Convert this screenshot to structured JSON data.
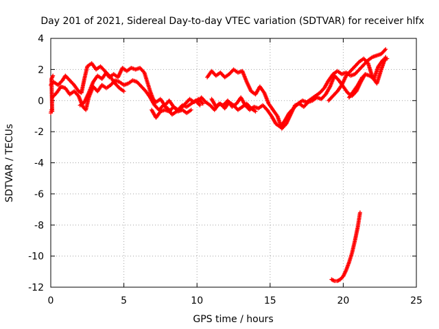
{
  "chart_data": {
    "type": "scatter",
    "title": "Day 201 of 2021, Sidereal Day-to-day VTEC variation (SDTVAR) for receiver hlfx",
    "xlabel": "GPS time / hours",
    "ylabel": "SDTVAR / TECUs",
    "xlim": [
      0,
      25
    ],
    "ylim": [
      -12,
      4
    ],
    "xticks": [
      0,
      5,
      10,
      15,
      20,
      25
    ],
    "yticks": [
      -12,
      -10,
      -8,
      -6,
      -4,
      -2,
      0,
      2,
      4
    ],
    "grid": true,
    "marker": "+",
    "color": "#ff0000",
    "series": [
      {
        "name": "track-a",
        "points": [
          [
            0.0,
            1.0
          ],
          [
            0.2,
            1.2
          ],
          [
            0.5,
            1.0
          ],
          [
            0.8,
            1.3
          ],
          [
            1.0,
            1.6
          ],
          [
            1.3,
            1.3
          ],
          [
            1.6,
            1.0
          ],
          [
            1.9,
            0.6
          ],
          [
            2.1,
            0.5
          ],
          [
            2.3,
            1.4
          ],
          [
            2.5,
            2.2
          ],
          [
            2.8,
            2.4
          ],
          [
            3.1,
            2.0
          ],
          [
            3.4,
            2.2
          ],
          [
            3.7,
            1.9
          ],
          [
            4.0,
            1.5
          ],
          [
            4.3,
            1.7
          ],
          [
            4.6,
            1.5
          ],
          [
            4.9,
            2.1
          ],
          [
            5.2,
            1.9
          ],
          [
            5.5,
            2.1
          ],
          [
            5.8,
            2.0
          ],
          [
            6.1,
            2.1
          ],
          [
            6.4,
            1.8
          ],
          [
            6.6,
            1.2
          ],
          [
            6.8,
            0.6
          ],
          [
            7.0,
            0.1
          ],
          [
            7.2,
            -0.1
          ],
          [
            7.5,
            0.1
          ],
          [
            7.8,
            -0.3
          ],
          [
            8.1,
            0.0
          ],
          [
            8.4,
            -0.4
          ],
          [
            8.7,
            -0.6
          ],
          [
            9.0,
            -0.3
          ],
          [
            9.3,
            -0.4
          ],
          [
            9.6,
            -0.2
          ],
          [
            9.9,
            0.0
          ],
          [
            10.2,
            -0.3
          ]
        ]
      },
      {
        "name": "track-b",
        "points": [
          [
            0.1,
            0.2
          ],
          [
            0.4,
            0.5
          ],
          [
            0.7,
            0.9
          ],
          [
            1.0,
            0.8
          ],
          [
            1.3,
            0.4
          ],
          [
            1.6,
            0.6
          ],
          [
            1.9,
            0.3
          ],
          [
            2.2,
            -0.4
          ],
          [
            2.4,
            -0.6
          ],
          [
            2.6,
            0.2
          ],
          [
            2.9,
            0.9
          ],
          [
            3.2,
            0.6
          ],
          [
            3.5,
            1.0
          ],
          [
            3.8,
            0.8
          ],
          [
            4.1,
            1.0
          ],
          [
            4.4,
            1.3
          ],
          [
            4.7,
            1.2
          ],
          [
            5.0,
            1.0
          ],
          [
            5.3,
            1.1
          ],
          [
            5.6,
            1.3
          ],
          [
            5.9,
            1.2
          ],
          [
            6.2,
            0.9
          ],
          [
            6.5,
            0.6
          ],
          [
            6.8,
            0.2
          ],
          [
            7.1,
            -0.3
          ],
          [
            7.4,
            -0.6
          ],
          [
            7.7,
            -0.3
          ],
          [
            8.0,
            -0.5
          ],
          [
            8.3,
            -0.9
          ],
          [
            8.6,
            -0.7
          ],
          [
            8.9,
            -0.5
          ],
          [
            9.2,
            -0.2
          ],
          [
            9.5,
            0.1
          ],
          [
            9.8,
            -0.1
          ],
          [
            10.1,
            0.1
          ],
          [
            10.4,
            -0.2
          ]
        ]
      },
      {
        "name": "track-c",
        "points": [
          [
            2.0,
            -0.3
          ],
          [
            2.3,
            -0.1
          ],
          [
            2.6,
            0.5
          ],
          [
            2.9,
            1.2
          ],
          [
            3.2,
            1.6
          ],
          [
            3.5,
            1.4
          ],
          [
            3.8,
            1.8
          ],
          [
            4.1,
            1.5
          ],
          [
            4.4,
            1.1
          ],
          [
            4.7,
            0.8
          ],
          [
            5.0,
            0.6
          ]
        ]
      },
      {
        "name": "track-d",
        "points": [
          [
            6.9,
            -0.6
          ],
          [
            7.2,
            -1.1
          ],
          [
            7.5,
            -0.7
          ],
          [
            7.8,
            -0.6
          ],
          [
            8.1,
            -0.7
          ],
          [
            8.4,
            -0.4
          ],
          [
            8.7,
            -0.7
          ],
          [
            9.0,
            -0.6
          ],
          [
            9.3,
            -0.8
          ],
          [
            9.6,
            -0.6
          ]
        ]
      },
      {
        "name": "track-e",
        "points": [
          [
            10.0,
            -0.1
          ],
          [
            10.3,
            0.2
          ],
          [
            10.6,
            -0.1
          ],
          [
            10.9,
            -0.3
          ],
          [
            11.2,
            -0.6
          ],
          [
            11.5,
            -0.2
          ],
          [
            11.8,
            -0.3
          ],
          [
            12.1,
            0.0
          ],
          [
            12.4,
            -0.4
          ],
          [
            12.7,
            -0.2
          ],
          [
            13.0,
            0.2
          ],
          [
            13.3,
            -0.3
          ],
          [
            13.6,
            -0.6
          ],
          [
            13.9,
            -0.4
          ],
          [
            14.2,
            -0.5
          ],
          [
            14.5,
            -0.3
          ],
          [
            14.8,
            -0.6
          ],
          [
            15.1,
            -1.0
          ],
          [
            15.4,
            -1.5
          ],
          [
            15.7,
            -1.7
          ],
          [
            16.0,
            -1.3
          ],
          [
            16.3,
            -0.8
          ],
          [
            16.6,
            -0.5
          ],
          [
            16.9,
            -0.2
          ],
          [
            17.2,
            0.0
          ],
          [
            17.5,
            -0.1
          ],
          [
            17.8,
            0.1
          ],
          [
            18.1,
            0.3
          ],
          [
            18.4,
            0.5
          ],
          [
            18.7,
            0.8
          ],
          [
            19.0,
            1.3
          ],
          [
            19.3,
            1.7
          ],
          [
            19.6,
            1.9
          ],
          [
            19.9,
            1.7
          ],
          [
            20.2,
            1.8
          ],
          [
            20.5,
            1.6
          ],
          [
            20.8,
            1.7
          ],
          [
            21.1,
            2.0
          ],
          [
            21.4,
            2.3
          ],
          [
            21.7,
            2.6
          ],
          [
            22.0,
            2.8
          ],
          [
            22.3,
            2.9
          ],
          [
            22.6,
            3.0
          ],
          [
            22.9,
            3.3
          ]
        ]
      },
      {
        "name": "track-f",
        "points": [
          [
            10.7,
            1.5
          ],
          [
            11.0,
            1.9
          ],
          [
            11.3,
            1.6
          ],
          [
            11.6,
            1.8
          ],
          [
            11.9,
            1.5
          ],
          [
            12.2,
            1.7
          ],
          [
            12.5,
            2.0
          ],
          [
            12.8,
            1.8
          ],
          [
            13.1,
            1.9
          ],
          [
            13.4,
            1.2
          ],
          [
            13.7,
            0.6
          ],
          [
            14.0,
            0.4
          ],
          [
            14.3,
            0.9
          ],
          [
            14.6,
            0.5
          ],
          [
            14.9,
            -0.2
          ],
          [
            15.2,
            -0.6
          ],
          [
            15.5,
            -1.0
          ],
          [
            15.8,
            -1.8
          ],
          [
            16.1,
            -1.5
          ],
          [
            16.4,
            -0.9
          ],
          [
            16.7,
            -0.3
          ],
          [
            17.0,
            -0.2
          ],
          [
            17.3,
            -0.4
          ],
          [
            17.6,
            -0.1
          ],
          [
            17.9,
            0.0
          ],
          [
            18.2,
            0.2
          ],
          [
            18.5,
            0.1
          ],
          [
            18.8,
            0.4
          ],
          [
            19.1,
            0.9
          ],
          [
            19.4,
            1.6
          ],
          [
            19.7,
            1.3
          ],
          [
            20.0,
            0.9
          ],
          [
            20.3,
            0.5
          ],
          [
            20.6,
            0.3
          ],
          [
            20.9,
            0.6
          ],
          [
            21.2,
            1.2
          ],
          [
            21.5,
            1.7
          ],
          [
            21.8,
            1.6
          ],
          [
            22.1,
            1.4
          ],
          [
            22.4,
            2.2
          ],
          [
            22.7,
            2.6
          ],
          [
            23.0,
            2.7
          ]
        ]
      },
      {
        "name": "track-g",
        "points": [
          [
            11.0,
            0.1
          ],
          [
            11.3,
            -0.4
          ],
          [
            11.6,
            -0.2
          ],
          [
            11.9,
            -0.5
          ],
          [
            12.2,
            -0.1
          ],
          [
            12.5,
            -0.3
          ],
          [
            12.8,
            -0.6
          ],
          [
            13.1,
            -0.4
          ],
          [
            13.4,
            -0.2
          ],
          [
            13.7,
            -0.5
          ],
          [
            14.0,
            -0.7
          ]
        ]
      },
      {
        "name": "track-h",
        "points": [
          [
            19.0,
            0.0
          ],
          [
            19.3,
            0.3
          ],
          [
            19.6,
            0.6
          ],
          [
            19.9,
            1.0
          ],
          [
            20.2,
            1.6
          ],
          [
            20.5,
            1.9
          ],
          [
            20.8,
            2.2
          ],
          [
            21.1,
            2.5
          ],
          [
            21.4,
            2.7
          ],
          [
            21.7,
            2.4
          ],
          [
            22.0,
            1.5
          ],
          [
            22.3,
            1.1
          ],
          [
            22.6,
            2.0
          ],
          [
            22.9,
            2.8
          ]
        ]
      },
      {
        "name": "track-i",
        "points": [
          [
            20.4,
            0.2
          ],
          [
            20.7,
            0.6
          ],
          [
            21.0,
            1.0
          ],
          [
            21.3,
            1.5
          ]
        ]
      },
      {
        "name": "track-j",
        "points": [
          [
            0.0,
            -0.8
          ],
          [
            0.05,
            -0.6
          ],
          [
            0.1,
            -0.7
          ],
          [
            0.05,
            1.4
          ],
          [
            0.15,
            1.6
          ]
        ]
      },
      {
        "name": "track-k",
        "points": [
          [
            19.2,
            -11.5
          ],
          [
            19.4,
            -11.6
          ],
          [
            19.6,
            -11.6
          ],
          [
            19.8,
            -11.5
          ],
          [
            20.0,
            -11.3
          ],
          [
            20.2,
            -10.9
          ],
          [
            20.4,
            -10.4
          ],
          [
            20.6,
            -9.8
          ],
          [
            20.8,
            -9.0
          ],
          [
            21.0,
            -8.1
          ],
          [
            21.15,
            -7.2
          ]
        ]
      }
    ]
  }
}
